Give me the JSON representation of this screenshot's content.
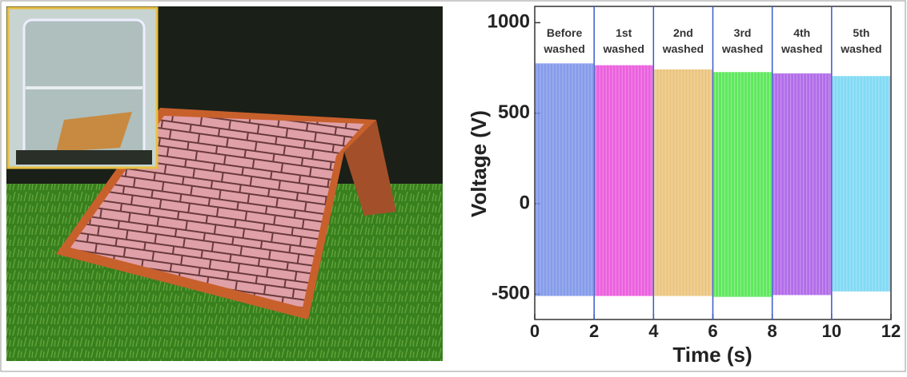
{
  "chart_data": {
    "type": "band",
    "xlabel": "Time (s)",
    "ylabel": "Voltage (V)",
    "xlim": [
      0,
      12
    ],
    "xticks": [
      0,
      2,
      4,
      6,
      8,
      10,
      12
    ],
    "ylim": [
      -640,
      1090
    ],
    "yticks": [
      -500,
      0,
      500,
      1000
    ],
    "series": [
      {
        "name": "Before washed",
        "color": "#6f8ae6",
        "x": [
          0,
          2
        ],
        "values": [
          775,
          -510
        ]
      },
      {
        "name": "1st washed",
        "color": "#e844d8",
        "x": [
          2,
          4
        ],
        "values": [
          765,
          -510
        ]
      },
      {
        "name": "2nd washed",
        "color": "#e8bc6a",
        "x": [
          4,
          6
        ],
        "values": [
          742,
          -510
        ]
      },
      {
        "name": "3rd washed",
        "color": "#44e444",
        "x": [
          6,
          8
        ],
        "values": [
          727,
          -515
        ]
      },
      {
        "name": "4th washed",
        "color": "#a454e4",
        "x": [
          8,
          10
        ],
        "values": [
          720,
          -505
        ]
      },
      {
        "name": "5th washed",
        "color": "#6cd4f2",
        "x": [
          10,
          12
        ],
        "values": [
          705,
          -485
        ]
      }
    ]
  }
}
